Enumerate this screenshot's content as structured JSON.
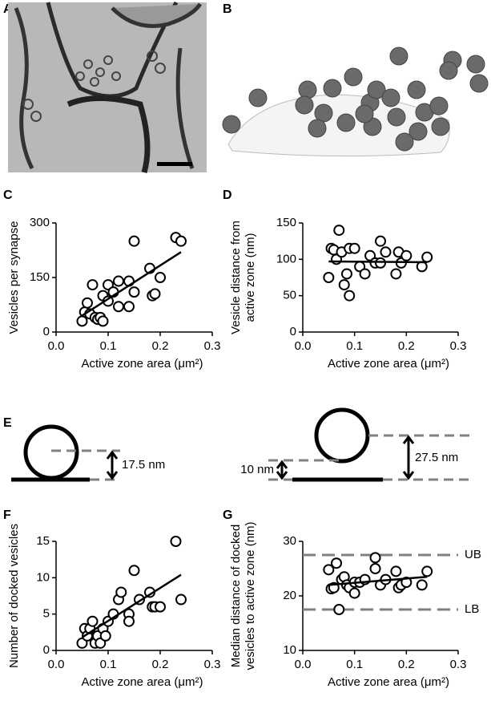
{
  "panel_labels": [
    "A",
    "B",
    "C",
    "D",
    "E",
    "F",
    "G"
  ],
  "diagram_e": {
    "left_gap": "17.5 nm",
    "right_small_gap": "10 nm",
    "right_large_gap": "27.5 nm"
  },
  "chart_data": [
    {
      "type": "scatter",
      "xlabel": "Active zone area (μm²)",
      "ylabel": [
        "Vesicles per synapse"
      ],
      "marker_color": "#000000",
      "fit_color": "#000000",
      "xlim": [
        0,
        0.3
      ],
      "xticks": [
        {
          "value": 0,
          "label": "0.0"
        },
        0.1,
        0.2,
        0.3
      ],
      "ylim": [
        0,
        300
      ],
      "yticks": [
        0,
        150,
        300
      ],
      "x": [
        0.05,
        0.055,
        0.06,
        0.065,
        0.07,
        0.075,
        0.08,
        0.085,
        0.09,
        0.09,
        0.1,
        0.1,
        0.11,
        0.12,
        0.12,
        0.14,
        0.14,
        0.15,
        0.15,
        0.18,
        0.185,
        0.19,
        0.2,
        0.23,
        0.24
      ],
      "values": [
        30,
        55,
        80,
        50,
        130,
        40,
        35,
        40,
        100,
        30,
        130,
        85,
        110,
        70,
        140,
        140,
        70,
        250,
        110,
        175,
        100,
        105,
        150,
        260,
        250
      ],
      "fit": {
        "x": [
          0.05,
          0.24
        ],
        "y": [
          45,
          220
        ]
      }
    },
    {
      "type": "scatter",
      "xlabel": "Active zone area (μm²)",
      "ylabel": [
        "Vesicle distance from",
        "active zone (nm)"
      ],
      "marker_color": "#000000",
      "fit_color": "#000000",
      "xlim": [
        0,
        0.3
      ],
      "xticks": [
        {
          "value": 0,
          "label": "0.0"
        },
        0.1,
        0.2,
        0.3
      ],
      "ylim": [
        0,
        150
      ],
      "yticks": [
        0,
        50,
        100,
        150
      ],
      "x": [
        0.05,
        0.055,
        0.06,
        0.065,
        0.07,
        0.075,
        0.08,
        0.085,
        0.09,
        0.09,
        0.1,
        0.11,
        0.12,
        0.13,
        0.14,
        0.15,
        0.15,
        0.16,
        0.18,
        0.185,
        0.19,
        0.2,
        0.23,
        0.24
      ],
      "values": [
        75,
        115,
        113,
        100,
        140,
        110,
        65,
        80,
        50,
        115,
        115,
        90,
        80,
        105,
        95,
        95,
        125,
        110,
        80,
        110,
        95,
        105,
        90,
        103
      ],
      "fit": {
        "x": [
          0.05,
          0.24
        ],
        "y": [
          97,
          96
        ]
      }
    },
    {
      "type": "scatter",
      "xlabel": "Active zone area (μm²)",
      "ylabel": [
        "Number of docked vesicles"
      ],
      "marker_color": "#000000",
      "fit_color": "#000000",
      "xlim": [
        0,
        0.3
      ],
      "xticks": [
        {
          "value": 0,
          "label": "0.0"
        },
        0.1,
        0.2,
        0.3
      ],
      "ylim": [
        0,
        15
      ],
      "yticks": [
        0,
        5,
        10,
        15
      ],
      "x": [
        0.05,
        0.055,
        0.06,
        0.065,
        0.07,
        0.075,
        0.08,
        0.085,
        0.09,
        0.095,
        0.1,
        0.11,
        0.12,
        0.125,
        0.14,
        0.14,
        0.15,
        0.16,
        0.18,
        0.185,
        0.19,
        0.2,
        0.23,
        0.24
      ],
      "values": [
        1,
        3,
        2,
        3,
        4,
        1,
        2,
        1,
        3,
        2,
        4,
        5,
        7,
        8,
        5,
        4,
        11,
        7,
        8,
        6,
        6,
        6,
        15,
        7
      ],
      "fit": {
        "x": [
          0.05,
          0.24
        ],
        "y": [
          1.8,
          10.4
        ]
      }
    },
    {
      "type": "scatter",
      "xlabel": "Active zone area (μm²)",
      "ylabel": [
        "Median distance of docked",
        "vesicles to active zone (nm)"
      ],
      "marker_color": "#000000",
      "fit_color": "#000000",
      "xlim": [
        0,
        0.3
      ],
      "xticks": [
        {
          "value": 0,
          "label": "0.0"
        },
        0.1,
        0.2,
        0.3
      ],
      "ylim": [
        10,
        30
      ],
      "yticks": [
        10,
        20,
        30
      ],
      "x": [
        0.05,
        0.055,
        0.06,
        0.065,
        0.07,
        0.075,
        0.08,
        0.085,
        0.09,
        0.1,
        0.1,
        0.11,
        0.12,
        0.14,
        0.14,
        0.15,
        0.16,
        0.18,
        0.185,
        0.19,
        0.2,
        0.23,
        0.24
      ],
      "values": [
        24.8,
        21.3,
        21.5,
        26,
        17.5,
        23,
        23.5,
        22,
        21.5,
        20.5,
        22.5,
        22.5,
        23,
        27,
        25,
        22,
        23,
        24.5,
        21.5,
        22,
        22.5,
        22,
        24.5
      ],
      "fit": {
        "x": [
          0.05,
          0.24
        ],
        "y": [
          22,
          23.5
        ]
      },
      "hlines": [
        {
          "value": 27.5,
          "label": "UB",
          "color": "#808080"
        },
        {
          "value": 17.5,
          "label": "LB",
          "color": "#808080"
        }
      ]
    }
  ]
}
